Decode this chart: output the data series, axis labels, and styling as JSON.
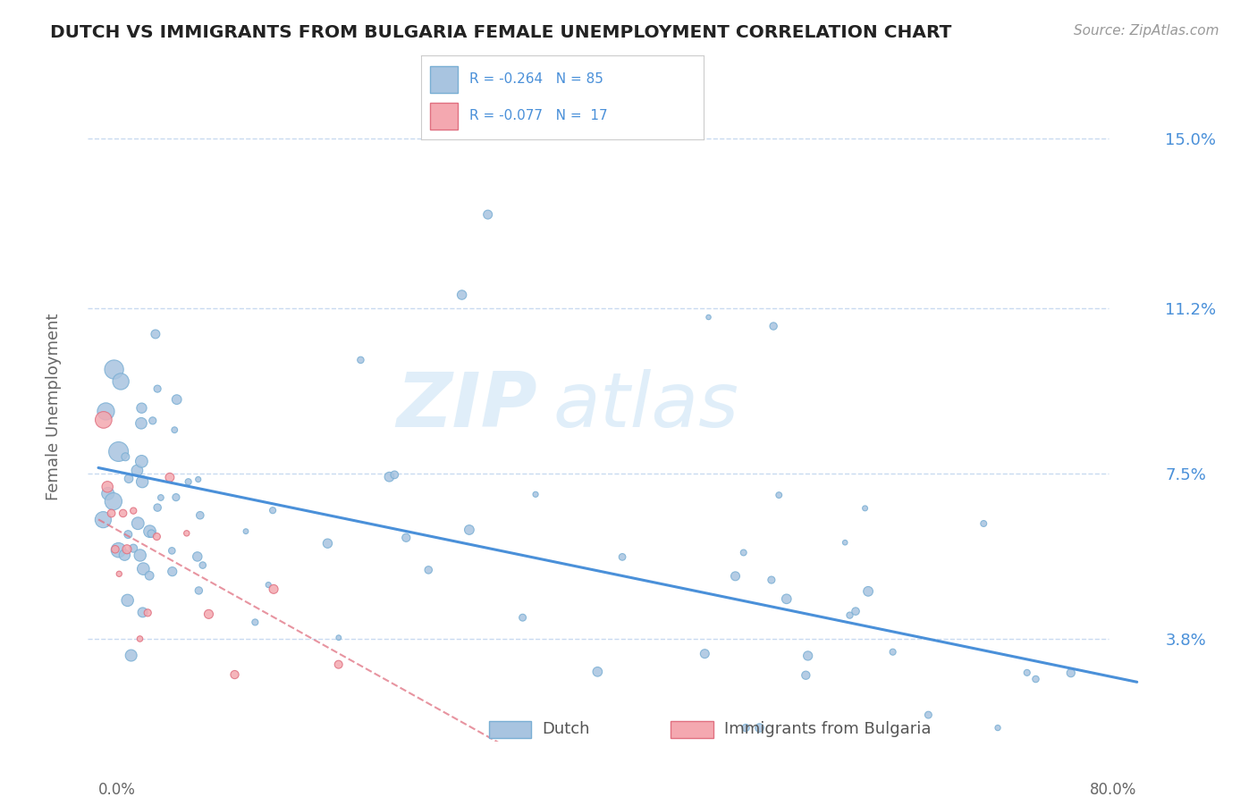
{
  "title": "DUTCH VS IMMIGRANTS FROM BULGARIA FEMALE UNEMPLOYMENT CORRELATION CHART",
  "source": "Source: ZipAtlas.com",
  "ylabel": "Female Unemployment",
  "ytick_labels": [
    "3.8%",
    "7.5%",
    "11.2%",
    "15.0%"
  ],
  "ytick_values": [
    0.038,
    0.075,
    0.112,
    0.15
  ],
  "xlim": [
    0.0,
    0.8
  ],
  "ylim": [
    0.015,
    0.165
  ],
  "legend_dutch_R": "R = -0.264",
  "legend_dutch_N": "N = 85",
  "legend_bulg_R": "R = -0.077",
  "legend_bulg_N": "N =  17",
  "watermark_zip": "ZIP",
  "watermark_atlas": "atlas",
  "dutch_color": "#a8c4e0",
  "dutch_edge": "#7aafd4",
  "bulg_color": "#f4a8b0",
  "bulg_edge": "#e07080",
  "trendline_dutch_color": "#4a90d9",
  "trendline_bulg_color": "#e07080",
  "background_color": "#ffffff",
  "grid_color": "#c8daf0",
  "text_color": "#4a90d9"
}
